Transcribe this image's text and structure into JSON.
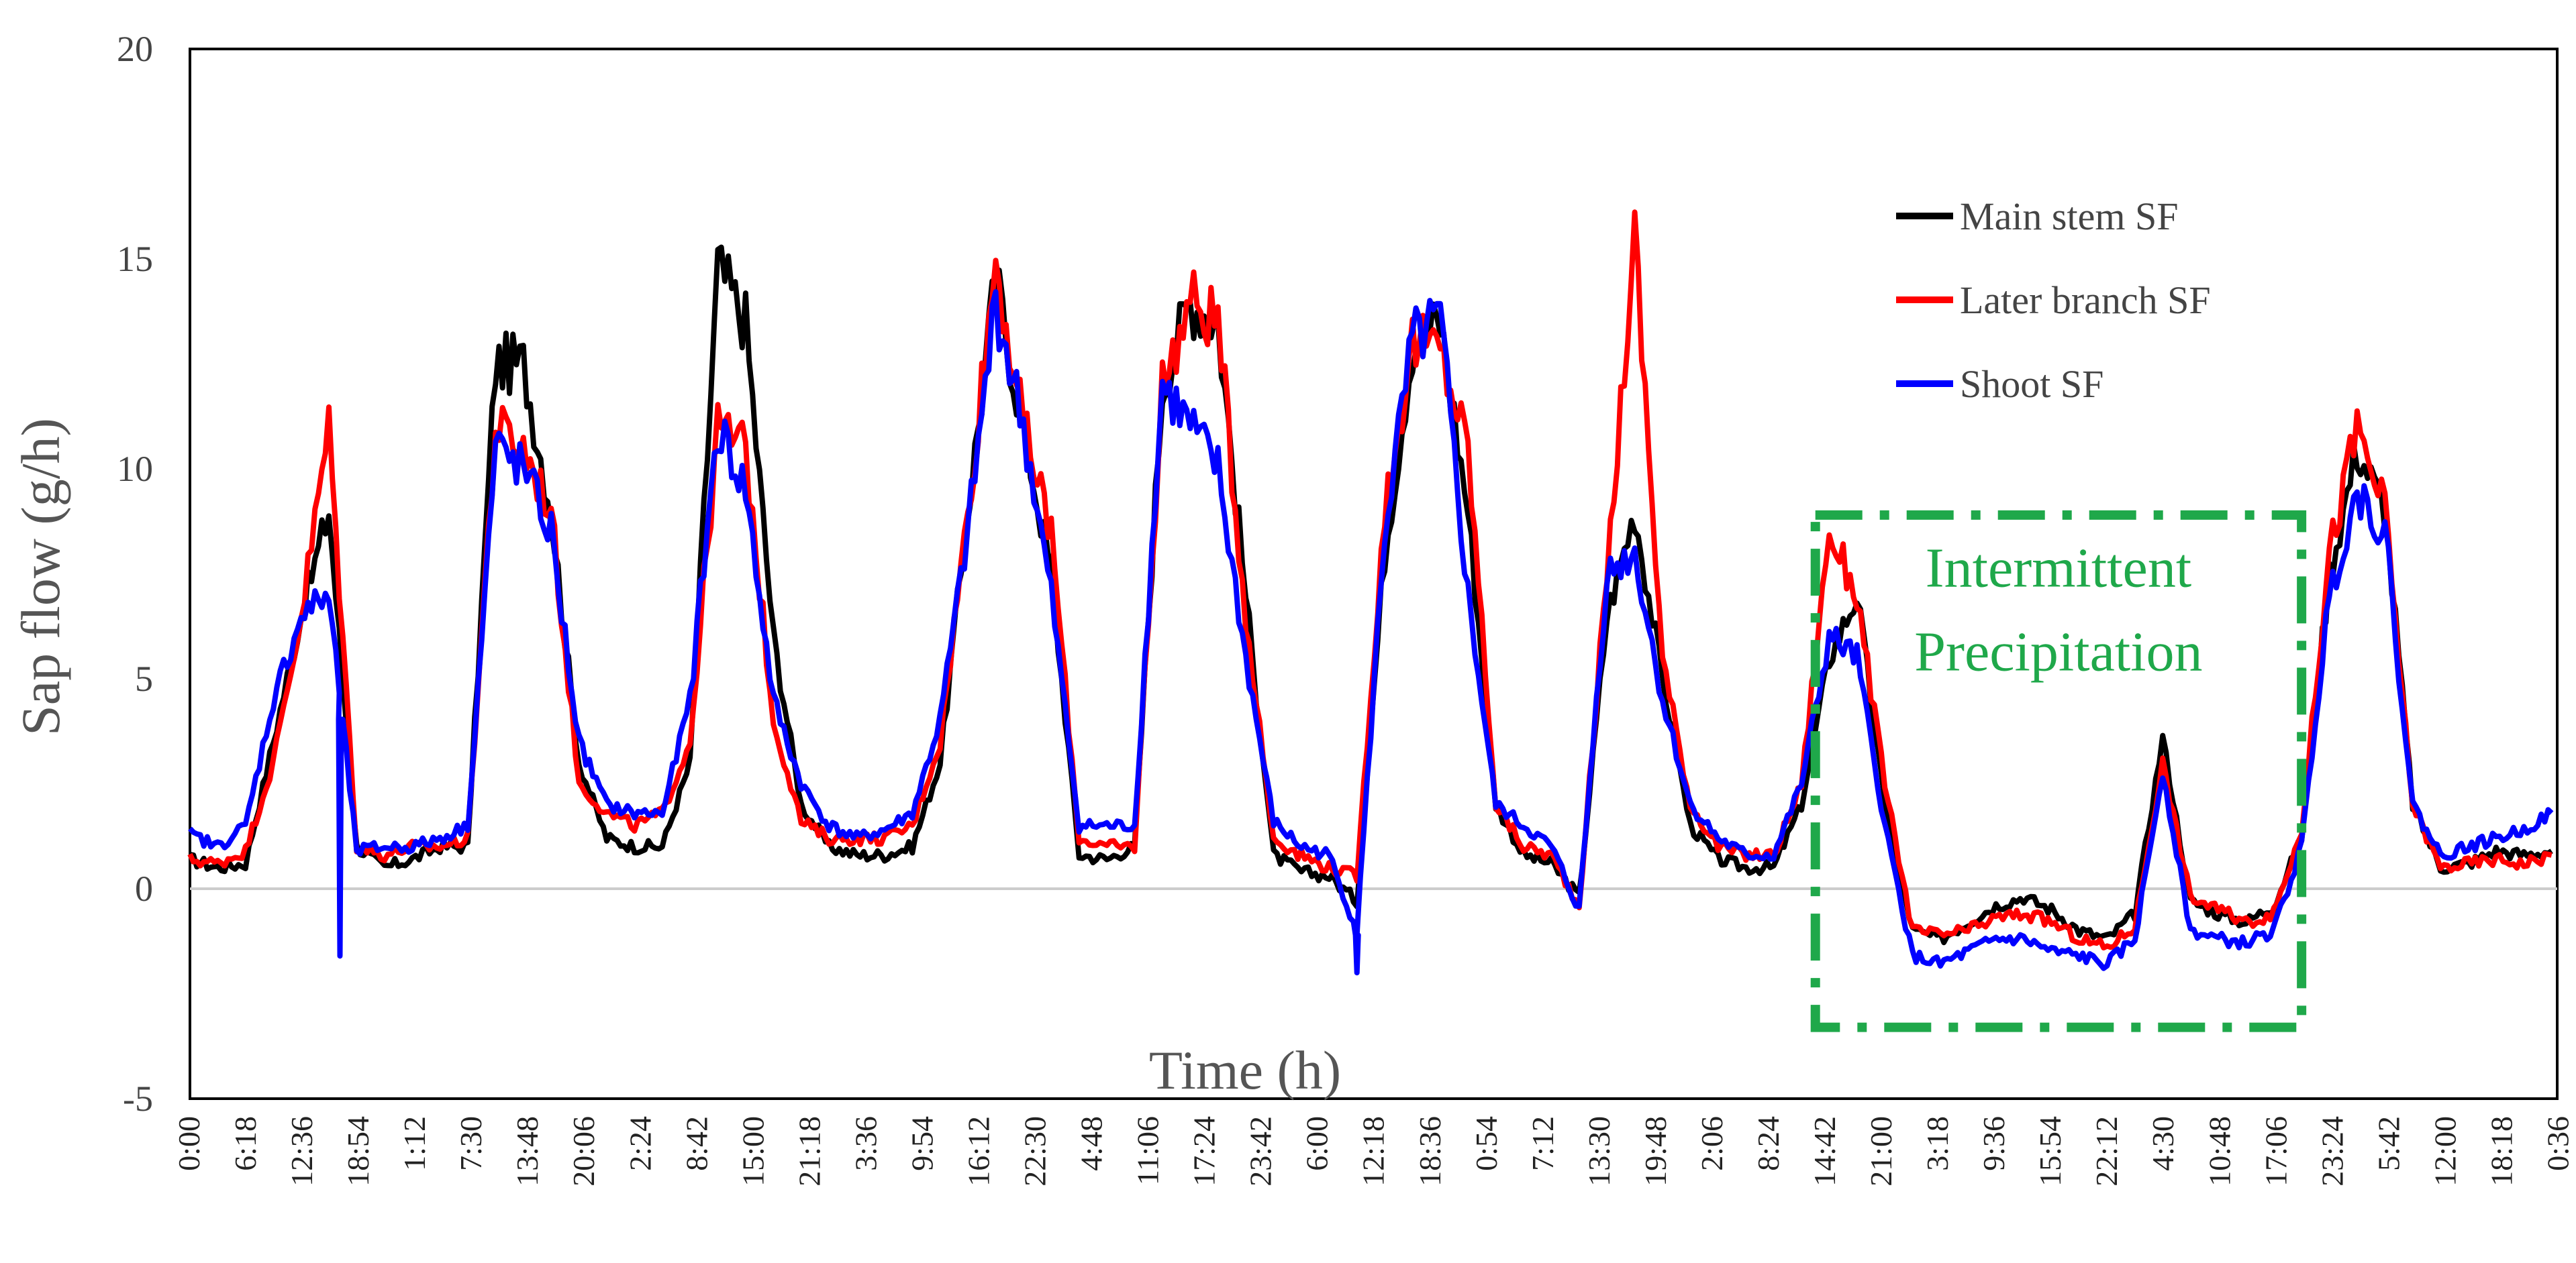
{
  "chart_data": {
    "type": "line",
    "title": "",
    "xlabel": "Time (h)",
    "ylabel": "Sap flow (g/h)",
    "ylim": [
      -5,
      20
    ],
    "yticks": [
      -5,
      0,
      5,
      10,
      15,
      20
    ],
    "grid": false,
    "legend_position": "top-right",
    "xtick_labels": [
      "0:00",
      "6:18",
      "12:36",
      "18:54",
      "1:12",
      "7:30",
      "13:48",
      "20:06",
      "2:24",
      "8:42",
      "15:00",
      "21:18",
      "3:36",
      "9:54",
      "16:12",
      "22:30",
      "4:48",
      "11:06",
      "17:24",
      "23:42",
      "6:00",
      "12:18",
      "18:36",
      "0:54",
      "7:12",
      "13:30",
      "19:48",
      "2:06",
      "8:24",
      "14:42",
      "21:00",
      "3:18",
      "9:36",
      "15:54",
      "22:12",
      "4:30",
      "10:48",
      "17:06",
      "23:24",
      "5:42",
      "12:00",
      "18:18",
      "0:36"
    ],
    "x_index": [
      0,
      0.5,
      1,
      1.5,
      2,
      2.5,
      3,
      3.5,
      4,
      4.5,
      5,
      5.5,
      6,
      6.5,
      7,
      7.5,
      8,
      8.5,
      9,
      9.5,
      10,
      10.5,
      11,
      11.5,
      12,
      12.5,
      13,
      13.5,
      14,
      14.5,
      15,
      15.5,
      16,
      16.5,
      17,
      17.5,
      18,
      18.5,
      19,
      19.5,
      20,
      20.5,
      21,
      21.5,
      22,
      22.5,
      23,
      23.5,
      24,
      24.5,
      25,
      25.5,
      26,
      26.5,
      27,
      27.5,
      28,
      28.5,
      29,
      29.5,
      30,
      30.5,
      31,
      31.5,
      32,
      32.5,
      33,
      33.5,
      34,
      34.5,
      35,
      35.5,
      36,
      36.5,
      37,
      37.5,
      38,
      38.5,
      39,
      39.5,
      40,
      40.5,
      41,
      41.5,
      42,
      42.5
    ],
    "series": [
      {
        "name": "Main stem SF",
        "color": "#000000",
        "values": [
          0.7,
          0.5,
          0.6,
          3.5,
          6.5,
          9.0,
          1.0,
          0.5,
          0.7,
          1.0,
          1.0,
          12.5,
          12.5,
          9.0,
          3.0,
          1.2,
          1.0,
          1.0,
          3.0,
          14.8,
          13.5,
          6.0,
          2.0,
          1.0,
          0.8,
          0.8,
          1.0,
          3.0,
          9.0,
          14.5,
          11.0,
          7.5,
          0.8,
          0.7,
          1.0,
          12.0,
          14.0,
          13.5,
          7.0,
          0.8,
          0.4,
          0.3,
          -0.3,
          8.0,
          13.0,
          13.5,
          9.0,
          2.0,
          0.8,
          0.6,
          -0.2,
          6.5,
          9.0,
          5.0,
          1.5,
          0.7,
          0.5,
          0.5,
          2.0,
          5.5,
          7.0,
          2.0,
          -1.0,
          -1.2,
          -0.8,
          -0.4,
          -0.2,
          -0.5,
          -1.0,
          -1.2,
          -0.6,
          3.6,
          -0.3,
          -0.6,
          -0.8,
          -0.4,
          1.2,
          7.5,
          10.5,
          9.0,
          2.0,
          0.5,
          0.6,
          0.9,
          0.8,
          0.9
        ]
      },
      {
        "name": "Later branch SF",
        "color": "#ff0000",
        "values": [
          0.7,
          0.6,
          0.9,
          3.0,
          6.5,
          11.0,
          1.0,
          0.8,
          1.0,
          1.0,
          1.2,
          11.0,
          10.5,
          9.0,
          2.5,
          1.8,
          1.5,
          1.8,
          3.5,
          11.0,
          10.5,
          4.0,
          1.6,
          1.2,
          1.2,
          1.2,
          1.5,
          3.5,
          9.0,
          15.0,
          11.0,
          8.5,
          1.2,
          1.0,
          1.0,
          12.0,
          14.0,
          13.5,
          6.5,
          1.2,
          0.8,
          0.5,
          0.3,
          9.0,
          13.0,
          12.8,
          10.5,
          2.0,
          1.0,
          0.8,
          -0.4,
          7.5,
          15.5,
          5.5,
          2.0,
          1.0,
          0.8,
          0.8,
          2.5,
          8.5,
          7.0,
          2.5,
          -1.0,
          -1.1,
          -1.0,
          -0.7,
          -0.6,
          -0.8,
          -1.2,
          -1.4,
          -0.9,
          3.0,
          -0.2,
          -0.5,
          -0.8,
          -0.6,
          1.4,
          8.0,
          11.0,
          9.0,
          2.0,
          0.5,
          0.6,
          0.7,
          0.6,
          0.8
        ]
      },
      {
        "name": "Shoot SF",
        "color": "#0000ff",
        "values": [
          1.3,
          1.0,
          1.5,
          4.5,
          6.5,
          7.0,
          0.9,
          1.0,
          1.0,
          1.2,
          1.5,
          10.5,
          10.0,
          8.5,
          3.5,
          2.0,
          1.8,
          1.8,
          4.5,
          11.0,
          9.5,
          4.5,
          2.5,
          1.5,
          1.2,
          1.4,
          1.8,
          4.0,
          8.5,
          14.0,
          11.0,
          7.0,
          1.5,
          1.5,
          1.5,
          12.0,
          11.0,
          10.0,
          5.5,
          1.6,
          1.0,
          0.8,
          -1.0,
          8.5,
          13.0,
          13.5,
          7.0,
          2.0,
          1.5,
          1.0,
          -0.5,
          7.5,
          8.0,
          4.5,
          2.0,
          1.2,
          0.8,
          0.8,
          2.5,
          6.0,
          5.5,
          1.5,
          -1.6,
          -1.8,
          -1.5,
          -1.2,
          -1.2,
          -1.5,
          -1.6,
          -1.8,
          -1.2,
          2.8,
          -1.0,
          -1.2,
          -1.3,
          -1.0,
          1.0,
          7.0,
          9.5,
          8.5,
          2.0,
          0.8,
          1.0,
          1.2,
          1.4,
          1.8
        ]
      }
    ],
    "spikes": [
      {
        "series": "Shoot SF",
        "x": 2.7,
        "y": -1.6
      },
      {
        "series": "Shoot SF",
        "x": 21.0,
        "y": -2.0
      }
    ],
    "annotation": {
      "text_line1": "Intermittent",
      "text_line2": "Precipitation",
      "x_range": [
        58.5,
        76.0
      ],
      "y_range": [
        -3.3,
        8.9
      ],
      "color": "#1fa84a",
      "style": "dash-dot box"
    }
  }
}
